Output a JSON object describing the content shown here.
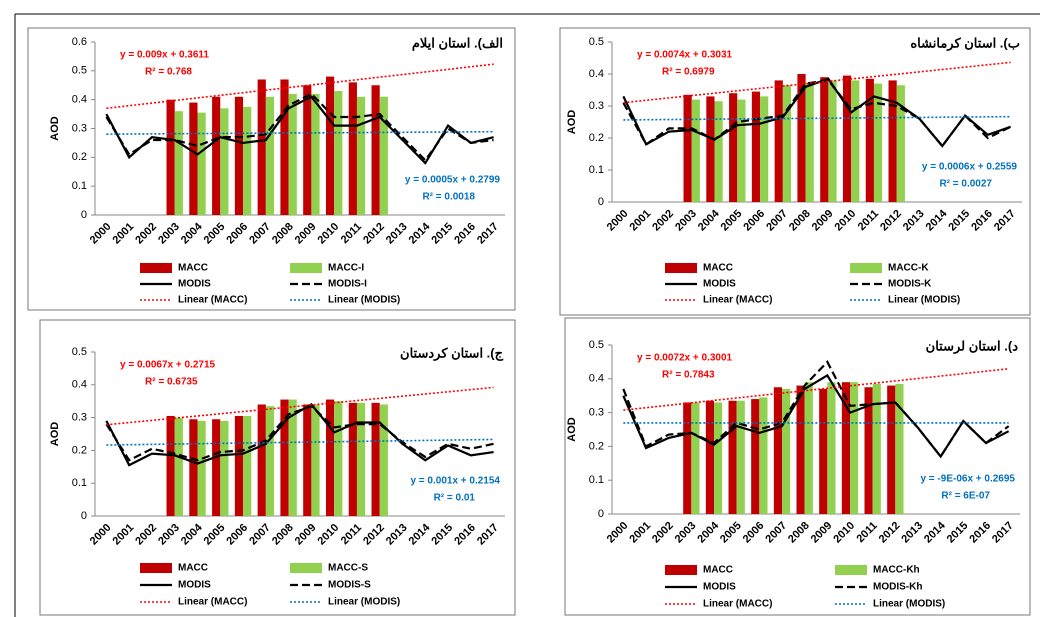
{
  "chart_data": [
    {
      "type": "combo",
      "title": "الف). استان ایلام",
      "ylabel": "AOD",
      "categories": [
        "2000",
        "2001",
        "2002",
        "2003",
        "2004",
        "2005",
        "2006",
        "2007",
        "2008",
        "2009",
        "2010",
        "2011",
        "2012",
        "2013",
        "2014",
        "2015",
        "2016",
        "2017"
      ],
      "ylim": [
        0,
        0.6
      ],
      "yticks": [
        0,
        0.1,
        0.2,
        0.3,
        0.4,
        0.5,
        0.6
      ],
      "series": [
        {
          "name": "MACC",
          "kind": "bar",
          "color": "#c00000",
          "values": [
            null,
            null,
            null,
            0.4,
            0.39,
            0.41,
            0.41,
            0.47,
            0.47,
            0.45,
            0.48,
            0.46,
            0.45,
            null,
            null,
            null,
            null,
            null
          ]
        },
        {
          "name": "MACC-I",
          "kind": "bar",
          "color": "#92d050",
          "values": [
            null,
            null,
            null,
            0.36,
            0.355,
            0.37,
            0.375,
            0.41,
            0.42,
            0.42,
            0.43,
            0.41,
            0.41,
            null,
            null,
            null,
            null,
            null
          ]
        },
        {
          "name": "MODIS",
          "kind": "line",
          "color": "#000000",
          "values": [
            0.35,
            0.2,
            0.27,
            0.26,
            0.21,
            0.27,
            0.25,
            0.26,
            0.37,
            0.41,
            0.31,
            0.31,
            0.34,
            0.26,
            0.18,
            0.31,
            0.25,
            0.27
          ]
        },
        {
          "name": "MODIS-I",
          "kind": "dash",
          "color": "#000000",
          "values": [
            0.34,
            0.21,
            0.26,
            0.26,
            0.24,
            0.27,
            0.27,
            0.28,
            0.38,
            0.42,
            0.34,
            0.34,
            0.35,
            0.27,
            0.19,
            0.3,
            0.25,
            0.26
          ]
        }
      ],
      "trendlines": [
        {
          "name": "Linear (MACC)",
          "color": "#ff0000",
          "slope": 0.009,
          "intercept": 0.3611,
          "equation": "y = 0.009x + 0.3611",
          "r2": "R² = 0.768"
        },
        {
          "name": "Linear (MODIS)",
          "color": "#0070c0",
          "slope": 0.0005,
          "intercept": 0.2799,
          "equation": "y = 0.0005x + 0.2799",
          "r2": "R² = 0.0018"
        }
      ]
    },
    {
      "type": "combo",
      "title": "ب). استان کرمانشاه",
      "ylabel": "AOD",
      "categories": [
        "2000",
        "2001",
        "2002",
        "2003",
        "2004",
        "2005",
        "2006",
        "2007",
        "2008",
        "2009",
        "2010",
        "2011",
        "2012",
        "2013",
        "2014",
        "2015",
        "2016",
        "2017"
      ],
      "ylim": [
        0,
        0.5
      ],
      "yticks": [
        0,
        0.1,
        0.2,
        0.3,
        0.4,
        0.5
      ],
      "series": [
        {
          "name": "MACC",
          "kind": "bar",
          "color": "#c00000",
          "values": [
            null,
            null,
            null,
            0.335,
            0.33,
            0.34,
            0.345,
            0.38,
            0.4,
            0.39,
            0.395,
            0.385,
            0.38,
            null,
            null,
            null,
            null,
            null
          ]
        },
        {
          "name": "MACC-K",
          "kind": "bar",
          "color": "#92d050",
          "values": [
            null,
            null,
            null,
            0.32,
            0.315,
            0.32,
            0.33,
            0.365,
            0.37,
            0.38,
            0.38,
            0.37,
            0.365,
            null,
            null,
            null,
            null,
            null
          ]
        },
        {
          "name": "MODIS",
          "kind": "line",
          "color": "#000000",
          "values": [
            0.33,
            0.18,
            0.22,
            0.225,
            0.195,
            0.24,
            0.245,
            0.265,
            0.36,
            0.385,
            0.28,
            0.33,
            0.31,
            0.26,
            0.175,
            0.27,
            0.21,
            0.235
          ]
        },
        {
          "name": "MODIS-K",
          "kind": "dash",
          "color": "#000000",
          "values": [
            0.31,
            0.18,
            0.23,
            0.23,
            0.195,
            0.25,
            0.26,
            0.27,
            0.37,
            0.38,
            0.29,
            0.31,
            0.3,
            0.26,
            0.175,
            0.27,
            0.2,
            0.235
          ]
        }
      ],
      "trendlines": [
        {
          "name": "Linear (MACC)",
          "color": "#ff0000",
          "slope": 0.0074,
          "intercept": 0.3031,
          "equation": "y = 0.0074x + 0.3031",
          "r2": "R² = 0.6979"
        },
        {
          "name": "Linear (MODIS)",
          "color": "#0070c0",
          "slope": 0.0006,
          "intercept": 0.2559,
          "equation": "y = 0.0006x + 0.2559",
          "r2": "R² = 0.0027"
        }
      ]
    },
    {
      "type": "combo",
      "title": "ج). استان کردستان",
      "ylabel": "AOD",
      "categories": [
        "2000",
        "2001",
        "2002",
        "2003",
        "2004",
        "2005",
        "2006",
        "2007",
        "2008",
        "2009",
        "2010",
        "2011",
        "2012",
        "2013",
        "2014",
        "2015",
        "2016",
        "2017"
      ],
      "ylim": [
        0,
        0.5
      ],
      "yticks": [
        0,
        0.1,
        0.2,
        0.3,
        0.4,
        0.5
      ],
      "series": [
        {
          "name": "MACC",
          "kind": "bar",
          "color": "#c00000",
          "values": [
            null,
            null,
            null,
            0.305,
            0.295,
            0.295,
            0.305,
            0.34,
            0.355,
            0.34,
            0.355,
            0.345,
            0.345,
            null,
            null,
            null,
            null,
            null
          ]
        },
        {
          "name": "MACC-S",
          "kind": "bar",
          "color": "#92d050",
          "values": [
            null,
            null,
            null,
            0.3,
            0.29,
            0.29,
            0.305,
            0.335,
            0.355,
            0.34,
            0.35,
            0.345,
            0.34,
            null,
            null,
            null,
            null,
            null
          ]
        },
        {
          "name": "MODIS",
          "kind": "line",
          "color": "#000000",
          "values": [
            0.29,
            0.155,
            0.19,
            0.185,
            0.16,
            0.185,
            0.19,
            0.22,
            0.3,
            0.34,
            0.255,
            0.285,
            0.285,
            0.22,
            0.17,
            0.215,
            0.185,
            0.195
          ]
        },
        {
          "name": "MODIS-S",
          "kind": "dash",
          "color": "#000000",
          "values": [
            0.28,
            0.17,
            0.205,
            0.19,
            0.17,
            0.195,
            0.2,
            0.23,
            0.31,
            0.335,
            0.27,
            0.28,
            0.28,
            0.225,
            0.18,
            0.22,
            0.205,
            0.22
          ]
        }
      ],
      "trendlines": [
        {
          "name": "Linear (MACC)",
          "color": "#ff0000",
          "slope": 0.0067,
          "intercept": 0.2715,
          "equation": "y = 0.0067x + 0.2715",
          "r2": "R² = 0.6735"
        },
        {
          "name": "Linear (MODIS)",
          "color": "#0070c0",
          "slope": 0.001,
          "intercept": 0.2154,
          "equation": "y = 0.001x + 0.2154",
          "r2": "R² = 0.01"
        }
      ]
    },
    {
      "type": "combo",
      "title": "د). استان لرستان",
      "ylabel": "AOD",
      "categories": [
        "2000",
        "2001",
        "2002",
        "2003",
        "2004",
        "2005",
        "2006",
        "2007",
        "2008",
        "2009",
        "2010",
        "2011",
        "2012",
        "2013",
        "2014",
        "2015",
        "2016",
        "2017"
      ],
      "ylim": [
        0,
        0.5
      ],
      "yticks": [
        0,
        0.1,
        0.2,
        0.3,
        0.4,
        0.5
      ],
      "series": [
        {
          "name": "MACC",
          "kind": "bar",
          "color": "#c00000",
          "values": [
            null,
            null,
            null,
            0.33,
            0.335,
            0.335,
            0.34,
            0.375,
            0.38,
            0.37,
            0.39,
            0.375,
            0.38,
            null,
            null,
            null,
            null,
            null
          ]
        },
        {
          "name": "MACC-Kh",
          "kind": "bar",
          "color": "#92d050",
          "values": [
            null,
            null,
            null,
            0.33,
            0.33,
            0.335,
            0.345,
            0.37,
            0.39,
            0.39,
            0.39,
            0.385,
            0.385,
            null,
            null,
            null,
            null,
            null
          ]
        },
        {
          "name": "MODIS",
          "kind": "line",
          "color": "#000000",
          "values": [
            0.35,
            0.195,
            0.225,
            0.24,
            0.205,
            0.26,
            0.24,
            0.26,
            0.37,
            0.41,
            0.3,
            0.325,
            0.33,
            0.255,
            0.17,
            0.275,
            0.21,
            0.245
          ]
        },
        {
          "name": "MODIS-Kh",
          "kind": "dash",
          "color": "#000000",
          "values": [
            0.37,
            0.2,
            0.235,
            0.24,
            0.21,
            0.27,
            0.25,
            0.27,
            0.38,
            0.45,
            0.32,
            0.325,
            0.33,
            0.255,
            0.17,
            0.275,
            0.21,
            0.26
          ]
        }
      ],
      "trendlines": [
        {
          "name": "Linear (MACC)",
          "color": "#ff0000",
          "slope": 0.0072,
          "intercept": 0.3001,
          "equation": "y = 0.0072x + 0.3001",
          "r2": "R² = 0.7843"
        },
        {
          "name": "Linear (MODIS)",
          "color": "#0070c0",
          "slope": -9e-06,
          "intercept": 0.2695,
          "equation": "y = -9E-06x + 0.2695",
          "r2": "R² = 6E-07"
        }
      ]
    }
  ]
}
